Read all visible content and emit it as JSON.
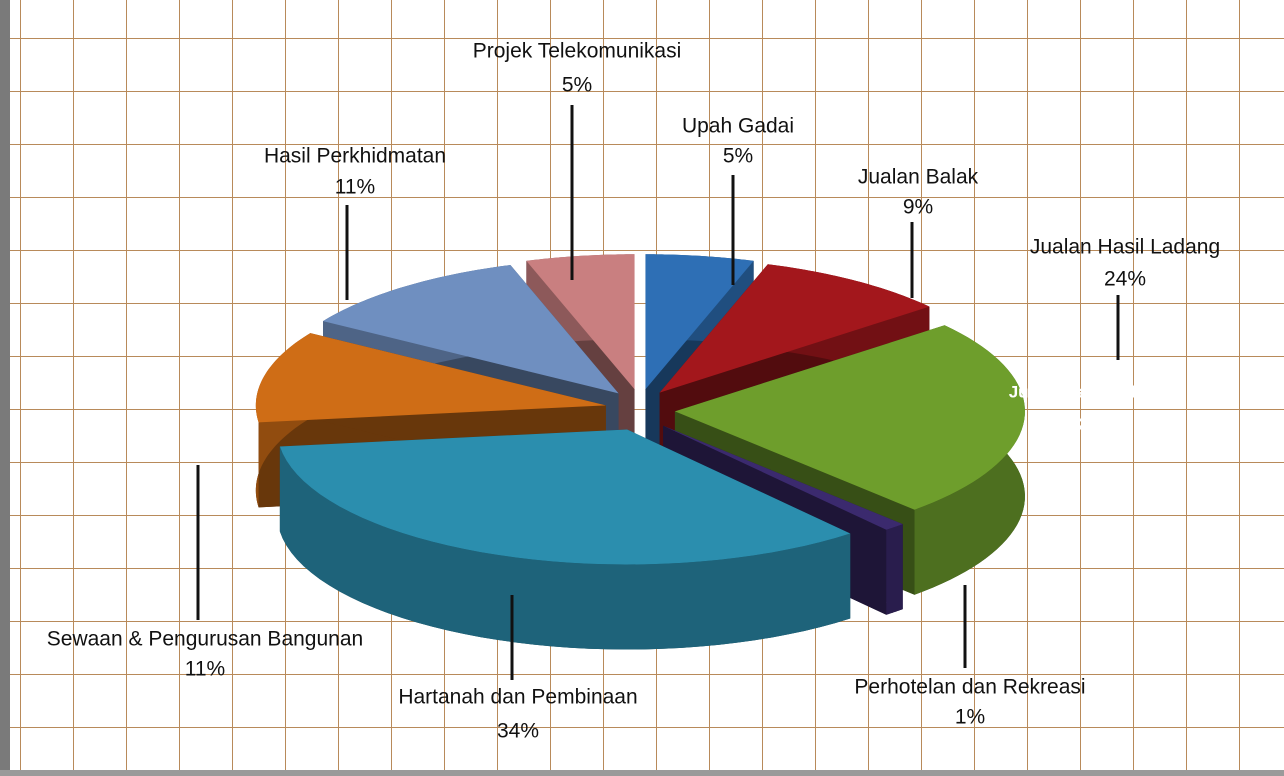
{
  "chart_data": {
    "type": "pie",
    "categories": [
      "Upah Gadai",
      "Jualan Balak",
      "Jualan Hasil Ladang",
      "Perhotelan dan Rekreasi",
      "Hartanah dan Pembinaan",
      "Sewaan & Pengurusan Bangunan",
      "Hasil Perkhidmatan",
      "Projek Telekomunikasi"
    ],
    "values": [
      5,
      9,
      24,
      1,
      34,
      11,
      11,
      5
    ],
    "value_labels": [
      "5%",
      "9%",
      "24%",
      "1%",
      "34%",
      "11%",
      "11%",
      "5%"
    ],
    "colors": [
      "#2e6fb5",
      "#a3171c",
      "#6e9e2c",
      "#3b2a6e",
      "#2b8eae",
      "#cf6d16",
      "#6f8fc0",
      "#c97f80"
    ],
    "annotations": [
      {
        "text": "Jualan hasil lad"
      }
    ]
  }
}
